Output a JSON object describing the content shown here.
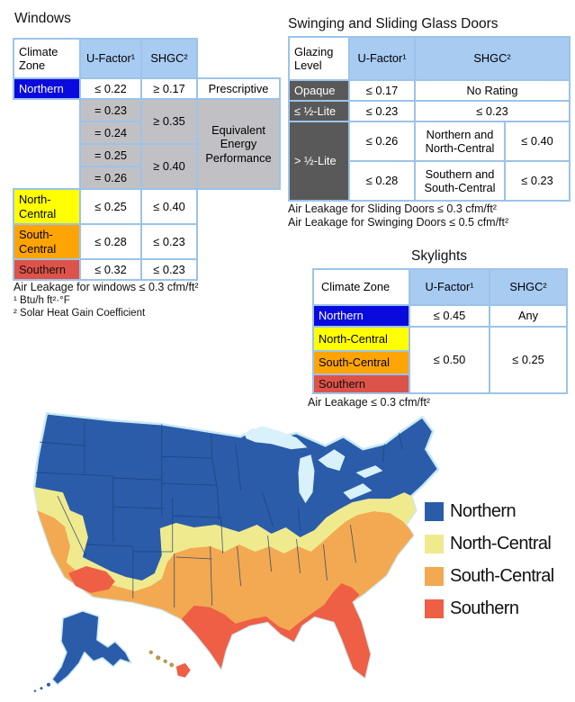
{
  "colors": {
    "table_header_blue": "#a8cbf2",
    "table_grid_border": "#9cc3ea",
    "zone_blue": "#0a0ade",
    "zone_yellow": "#ffff00",
    "zone_orange": "#ffa405",
    "zone_red": "#de5349",
    "gray_cell": "#c1c1c5",
    "dark_gray_cell": "#595959"
  },
  "windows": {
    "title": "Windows",
    "headers": [
      "Climate Zone",
      "U-Factor¹",
      "SHGC²"
    ],
    "northern": {
      "zone": "Northern",
      "u": "≤ 0.22",
      "shgc": "≥ 0.17",
      "note": "Prescriptive"
    },
    "equivalent": {
      "u_values": [
        "= 0.23",
        "= 0.24",
        "= 0.25",
        "= 0.26"
      ],
      "shgc_values": [
        "≥ 0.35",
        "≥ 0.40"
      ],
      "note": "Equivalent Energy Performance"
    },
    "north_central": {
      "zone": "North-Central",
      "u": "≤ 0.25",
      "shgc": "≤ 0.40"
    },
    "south_central": {
      "zone": "South-Central",
      "u": "≤ 0.28",
      "shgc": "≤ 0.23"
    },
    "southern": {
      "zone": "Southern",
      "u": "≤ 0.32",
      "shgc": "≤ 0.23"
    },
    "footnotes": [
      "Air Leakage for windows ≤ 0.3 cfm/ft²",
      "¹ Btu/h ft²·°F",
      "² Solar Heat Gain Coefficient"
    ]
  },
  "doors": {
    "title": "Swinging and Sliding Glass Doors",
    "headers": [
      "Glazing Level",
      "U-Factor¹",
      "SHGC²"
    ],
    "opaque": {
      "label": "Opaque",
      "u": "≤ 0.17",
      "shgc": "No Rating"
    },
    "half_lite": {
      "label": "≤ ½-Lite",
      "u": "≤ 0.23",
      "shgc": "≤ 0.23"
    },
    "over_half_lite": {
      "label": "> ½-Lite",
      "rows": [
        {
          "u": "≤ 0.26",
          "zones": "Northern and North-Central",
          "shgc": "≤ 0.40"
        },
        {
          "u": "≤ 0.28",
          "zones": "Southern and South-Central",
          "shgc": "≤ 0.23"
        }
      ]
    },
    "footnotes": [
      "Air Leakage for Sliding Doors ≤ 0.3 cfm/ft²",
      "Air Leakage for Swinging Doors ≤ 0.5 cfm/ft²"
    ]
  },
  "skylights": {
    "title": "Skylights",
    "headers": [
      "Climate Zone",
      "U-Factor¹",
      "SHGC²"
    ],
    "northern": {
      "zone": "Northern",
      "u": "≤ 0.45",
      "shgc": "Any"
    },
    "merged": {
      "zones": [
        "North-Central",
        "South-Central",
        "Southern"
      ],
      "u": "≤ 0.50",
      "shgc": "≤ 0.25"
    },
    "footnote": "Air Leakage ≤ 0.3 cfm/ft²"
  },
  "map": {
    "colors": {
      "northern": "#2a5caa",
      "north_central": "#f0ea8f",
      "south_central": "#f2a952",
      "southern": "#ee5f45",
      "lakes": "#d9f1fb",
      "state_borders": "#1d3f73",
      "halo": "#c9e9f6"
    },
    "legend": [
      {
        "label": "Northern",
        "color_key": "northern"
      },
      {
        "label": "North-Central",
        "color_key": "north_central"
      },
      {
        "label": "South-Central",
        "color_key": "south_central"
      },
      {
        "label": "Southern",
        "color_key": "southern"
      }
    ]
  }
}
